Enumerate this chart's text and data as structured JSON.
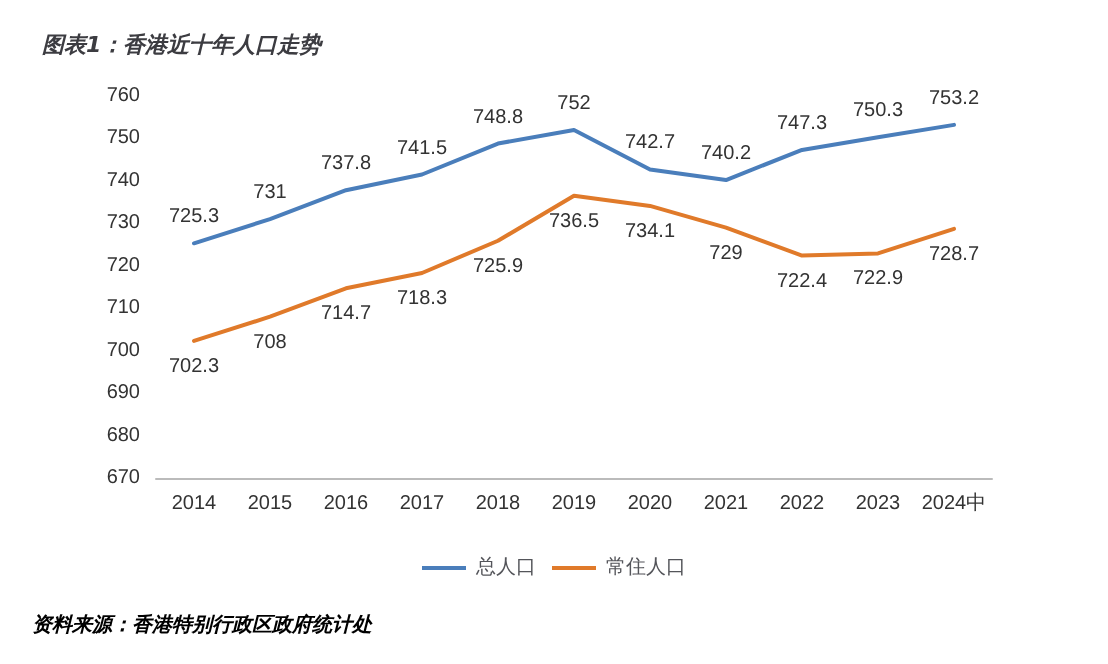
{
  "chart_data": {
    "type": "line",
    "title": "图表1：香港近十年人口走势",
    "categories": [
      "2014",
      "2015",
      "2016",
      "2017",
      "2018",
      "2019",
      "2020",
      "2021",
      "2022",
      "2023",
      "2024中"
    ],
    "series": [
      {
        "name": "总人口",
        "color": "#4a7ebb",
        "values": [
          725.3,
          731,
          737.8,
          741.5,
          748.8,
          752,
          742.7,
          740.2,
          747.3,
          750.3,
          753.2
        ]
      },
      {
        "name": "常住人口",
        "color": "#e07a2a",
        "values": [
          702.3,
          708,
          714.7,
          718.3,
          725.9,
          736.5,
          734.1,
          729,
          722.4,
          722.9,
          728.7
        ]
      }
    ],
    "ylim": [
      670,
      760
    ],
    "yticks": [
      670,
      680,
      690,
      700,
      710,
      720,
      730,
      740,
      750,
      760
    ],
    "grid": false,
    "legend": "bottom",
    "data_labels": true,
    "marker": "none",
    "line_style": "solid",
    "annotations": [
      "资料来源：香港特别行政区政府统计处"
    ]
  }
}
